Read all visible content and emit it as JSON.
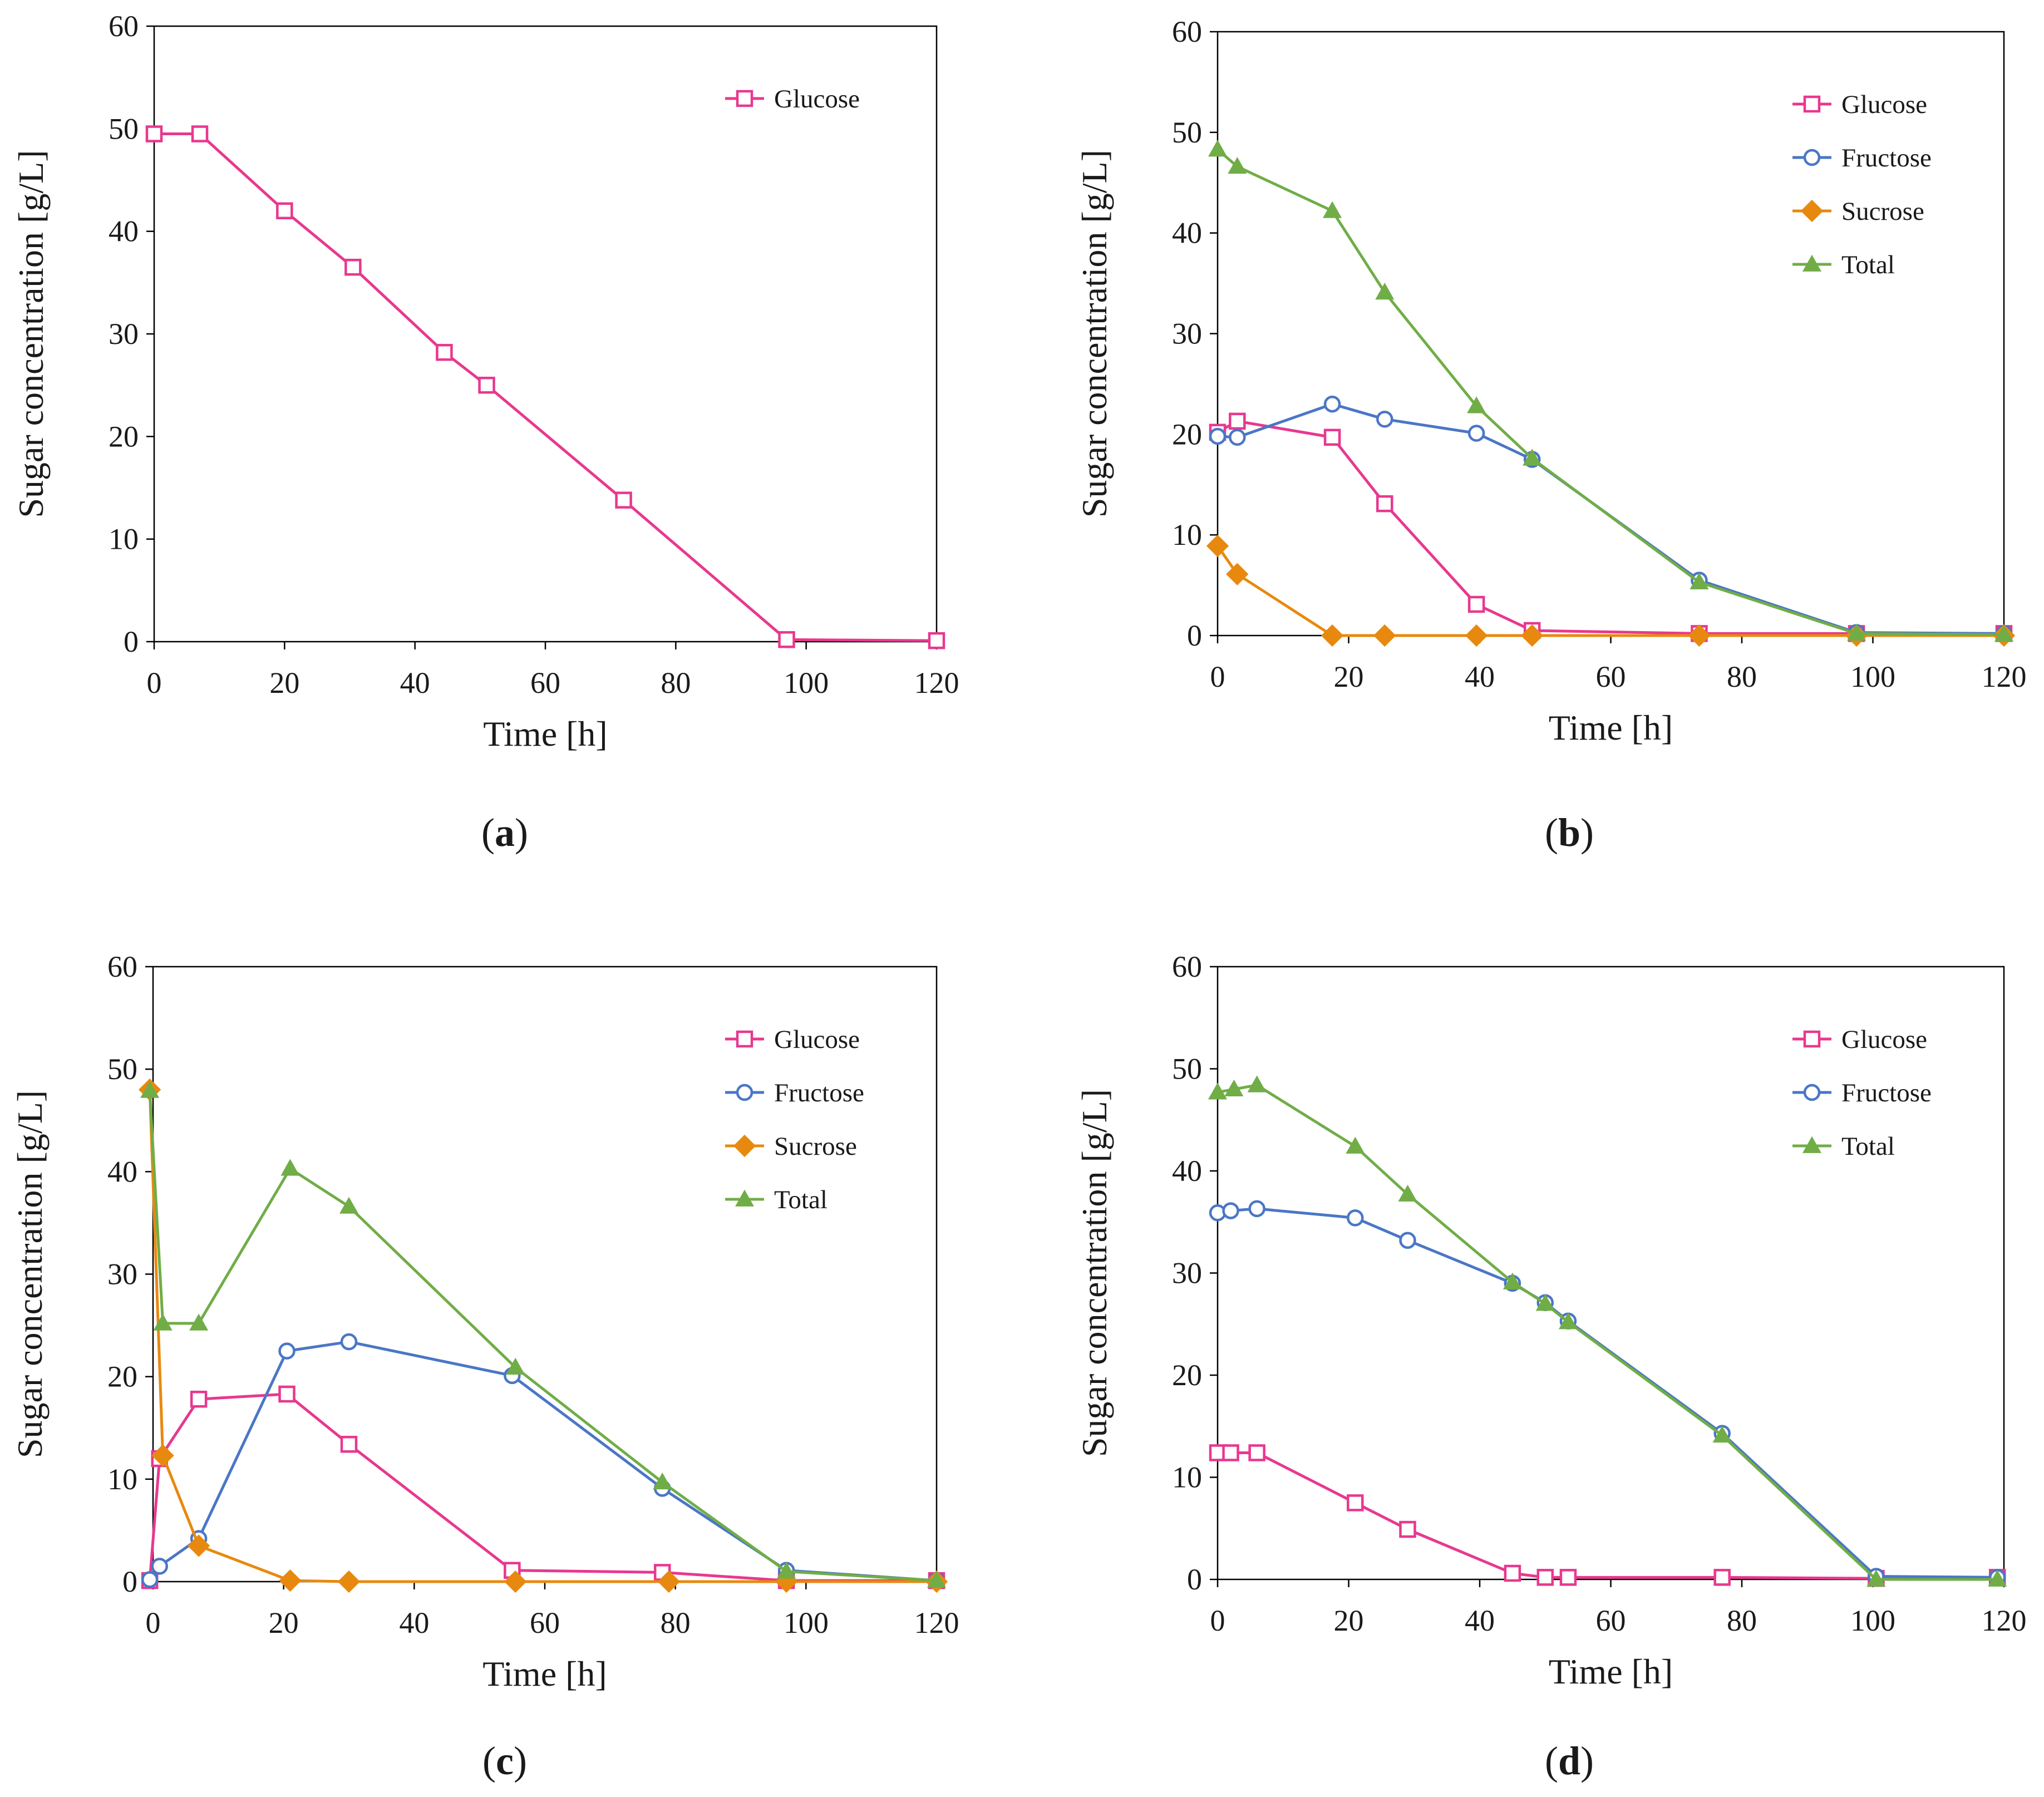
{
  "figure_title": "Sugar concentration time courses",
  "colors": {
    "Glucose": "#e8388f",
    "Fructose": "#4a76c6",
    "Sucrose": "#e8890f",
    "Total": "#70ad47",
    "axis": "#000000",
    "text": "#1a1a1a"
  },
  "chart_data": [
    {
      "id": "a",
      "type": "line",
      "caption": {
        "open": "(",
        "letter": "a",
        "close": ")"
      },
      "xlabel": "Time [h]",
      "ylabel": "Sugar concentration [g/L]",
      "xlim": [
        0,
        120
      ],
      "ylim": [
        0,
        60
      ],
      "xticks": [
        "0",
        "20",
        "40",
        "60",
        "80",
        "100",
        "120"
      ],
      "yticks": [
        "0",
        "10",
        "20",
        "30",
        "40",
        "50",
        "60"
      ],
      "legend_position": "top-right",
      "series": [
        {
          "name": "Glucose",
          "marker": "square",
          "x": [
            0,
            7,
            20,
            30.5,
            44.5,
            51,
            72,
            97,
            120
          ],
          "y": [
            49.5,
            49.5,
            42,
            36.5,
            28.2,
            25,
            13.8,
            0.2,
            0.1
          ]
        }
      ]
    },
    {
      "id": "b",
      "type": "line",
      "caption": {
        "open": "(",
        "letter": "b",
        "close": ")"
      },
      "xlabel": "Time [h]",
      "ylabel": "Sugar concentration [g/L]",
      "xlim": [
        0,
        120
      ],
      "ylim": [
        0,
        60
      ],
      "xticks": [
        "0",
        "20",
        "40",
        "60",
        "80",
        "100",
        "120"
      ],
      "yticks": [
        "0",
        "10",
        "20",
        "30",
        "40",
        "50",
        "60"
      ],
      "legend_position": "top-right",
      "series": [
        {
          "name": "Glucose",
          "marker": "square",
          "x": [
            0,
            3,
            17.5,
            25.5,
            39.5,
            48,
            73.5,
            97.5,
            120
          ],
          "y": [
            20.2,
            21.3,
            19.7,
            13.1,
            3.1,
            0.5,
            0.2,
            0.2,
            0.2
          ]
        },
        {
          "name": "Fructose",
          "marker": "circle",
          "x": [
            0,
            3,
            17.5,
            25.5,
            39.5,
            48,
            73.5,
            97.5,
            120
          ],
          "y": [
            19.8,
            19.7,
            23,
            21.5,
            20.1,
            17.5,
            5.5,
            0.3,
            0.2
          ]
        },
        {
          "name": "Sucrose",
          "marker": "diamond",
          "x": [
            0,
            3,
            17.5,
            25.5,
            39.5,
            48,
            73.5,
            97.5,
            120
          ],
          "y": [
            8.9,
            6.1,
            0,
            0,
            0,
            0,
            0,
            0,
            0
          ]
        },
        {
          "name": "Total",
          "marker": "triangle",
          "x": [
            0,
            3,
            17.5,
            25.5,
            39.5,
            48,
            73.5,
            97.5,
            120
          ],
          "y": [
            48.3,
            46.6,
            42.2,
            34.1,
            22.8,
            17.6,
            5.3,
            0.2,
            0.1
          ]
        }
      ]
    },
    {
      "id": "c",
      "type": "line",
      "caption": {
        "open": "(",
        "letter": "c",
        "close": ")"
      },
      "xlabel": "Time [h]",
      "ylabel": "Sugar concentration [g/L]",
      "xlim": [
        0,
        120
      ],
      "ylim": [
        0,
        60
      ],
      "xticks": [
        "0",
        "20",
        "40",
        "60",
        "80",
        "100",
        "120"
      ],
      "yticks": [
        "0",
        "10",
        "20",
        "30",
        "40",
        "50",
        "60"
      ],
      "legend_position": "top-right",
      "series": [
        {
          "name": "Glucose",
          "marker": "square",
          "x": [
            -0.5,
            1,
            7,
            20.5,
            30,
            55,
            78,
            97,
            120
          ],
          "y": [
            0.1,
            12,
            17.8,
            18.3,
            13.4,
            1.1,
            0.9,
            0.1,
            0.1
          ]
        },
        {
          "name": "Fructose",
          "marker": "circle",
          "x": [
            -0.5,
            1,
            7,
            20.5,
            30,
            55,
            78,
            97,
            120
          ],
          "y": [
            0.2,
            1.5,
            4.2,
            22.5,
            23.4,
            20.1,
            9.1,
            1.1,
            0.1
          ]
        },
        {
          "name": "Sucrose",
          "marker": "diamond",
          "x": [
            -0.5,
            1.5,
            7,
            21,
            30,
            55.5,
            79,
            97,
            120
          ],
          "y": [
            48,
            12.3,
            3.5,
            0.1,
            0,
            0,
            0,
            0,
            0
          ]
        },
        {
          "name": "Total",
          "marker": "triangle",
          "x": [
            -0.5,
            1.5,
            7,
            21,
            30,
            55.5,
            78,
            97,
            120
          ],
          "y": [
            47.9,
            25.2,
            25.2,
            40.3,
            36.6,
            20.9,
            9.7,
            1,
            0.1
          ]
        }
      ]
    },
    {
      "id": "d",
      "type": "line",
      "caption": {
        "open": "(",
        "letter": "d",
        "close": ")"
      },
      "xlabel": "Time [h]",
      "ylabel": "Sugar concentration [g/L]",
      "xlim": [
        0,
        120
      ],
      "ylim": [
        0,
        60
      ],
      "xticks": [
        "0",
        "20",
        "40",
        "60",
        "80",
        "100",
        "120"
      ],
      "yticks": [
        "0",
        "10",
        "20",
        "30",
        "40",
        "50",
        "60"
      ],
      "legend_position": "top-right",
      "series": [
        {
          "name": "Glucose",
          "marker": "square",
          "x": [
            0,
            2,
            6,
            21,
            29,
            45,
            50,
            53.5,
            77,
            100.5,
            119
          ],
          "y": [
            12.4,
            12.4,
            12.4,
            7.5,
            4.9,
            0.6,
            0.2,
            0.2,
            0.2,
            0.1,
            0.2
          ]
        },
        {
          "name": "Fructose",
          "marker": "circle",
          "x": [
            0,
            2,
            6,
            21,
            29,
            45,
            50,
            53.5,
            77,
            100.5,
            119
          ],
          "y": [
            35.9,
            36.1,
            36.3,
            35.4,
            33.2,
            29,
            27.1,
            25.3,
            14.3,
            0.3,
            0.2
          ]
        },
        {
          "name": "Total",
          "marker": "triangle",
          "x": [
            0,
            2.5,
            6,
            21,
            29,
            45,
            50,
            53.5,
            77,
            100.5,
            119
          ],
          "y": [
            47.7,
            48,
            48.4,
            42.4,
            37.7,
            29.1,
            27,
            25.2,
            14.1,
            0,
            0
          ]
        }
      ]
    }
  ]
}
